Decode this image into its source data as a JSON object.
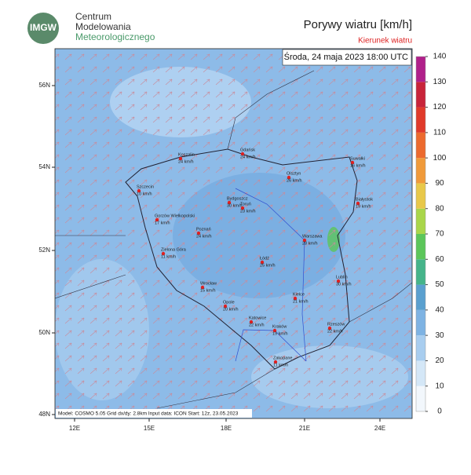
{
  "header": {
    "logo": "IMGW",
    "org_line1": "Centrum",
    "org_line2": "Modelowania",
    "org_line3": "Meteorologicznego",
    "title": "Porywy wiatru [km/h]",
    "subtitle": "Kierunek wiatru"
  },
  "map": {
    "timestamp": "Środa, 24 maja 2023 18:00 UTC",
    "footer": "Model: COSMO 5.05  Grid dx/dy: 2.8km  Input data: ICON  Start: 12z, 23.05.2023",
    "lat_labels": [
      "56N",
      "54N",
      "52N",
      "50N",
      "48N"
    ],
    "lon_labels": [
      "12E",
      "15E",
      "18E",
      "21E",
      "24E"
    ],
    "cities": [
      {
        "name": "Koszalin",
        "wind": "24 km/h"
      },
      {
        "name": "Gdańsk",
        "wind": "24 km/h"
      },
      {
        "name": "Suwałki",
        "wind": "16 km/h"
      },
      {
        "name": "Szczecin",
        "wind": "10 km/h"
      },
      {
        "name": "Olsztyn",
        "wind": "26 km/h"
      },
      {
        "name": "Bydgoszcz",
        "wind": "30 km/h"
      },
      {
        "name": "Toruń",
        "wind": "23 km/h"
      },
      {
        "name": "Białystok",
        "wind": "19 km/h"
      },
      {
        "name": "Gorzów Wielkopolski",
        "wind": "17 km/h"
      },
      {
        "name": "Poznań",
        "wind": "24 km/h"
      },
      {
        "name": "Warszawa",
        "wind": "28 km/h"
      },
      {
        "name": "Zielona Góra",
        "wind": "11 km/h"
      },
      {
        "name": "Łódź",
        "wind": "25 km/h"
      },
      {
        "name": "Lublin",
        "wind": "30 km/h"
      },
      {
        "name": "Wrocław",
        "wind": "15 km/h"
      },
      {
        "name": "Opole",
        "wind": "20 km/h"
      },
      {
        "name": "Kielce",
        "wind": "21 km/h"
      },
      {
        "name": "Katowice",
        "wind": "22 km/h"
      },
      {
        "name": "Kraków",
        "wind": "19 km/h"
      },
      {
        "name": "Rzeszów",
        "wind": "22 km/h"
      },
      {
        "name": "Zakopane",
        "wind": "11 km/h"
      }
    ]
  },
  "colorbar": {
    "ticks": [
      0,
      10,
      20,
      30,
      40,
      50,
      60,
      70,
      80,
      90,
      100,
      110,
      120,
      130,
      140
    ],
    "colors": [
      "#f2f7fc",
      "#d4e7f7",
      "#a8cdef",
      "#7eb3e3",
      "#5aa0cf",
      "#45b48a",
      "#5cc65a",
      "#a9d64a",
      "#e8c84a",
      "#f09a3a",
      "#ec6a2e",
      "#e03a2a",
      "#c8243a",
      "#b0208a"
    ]
  }
}
